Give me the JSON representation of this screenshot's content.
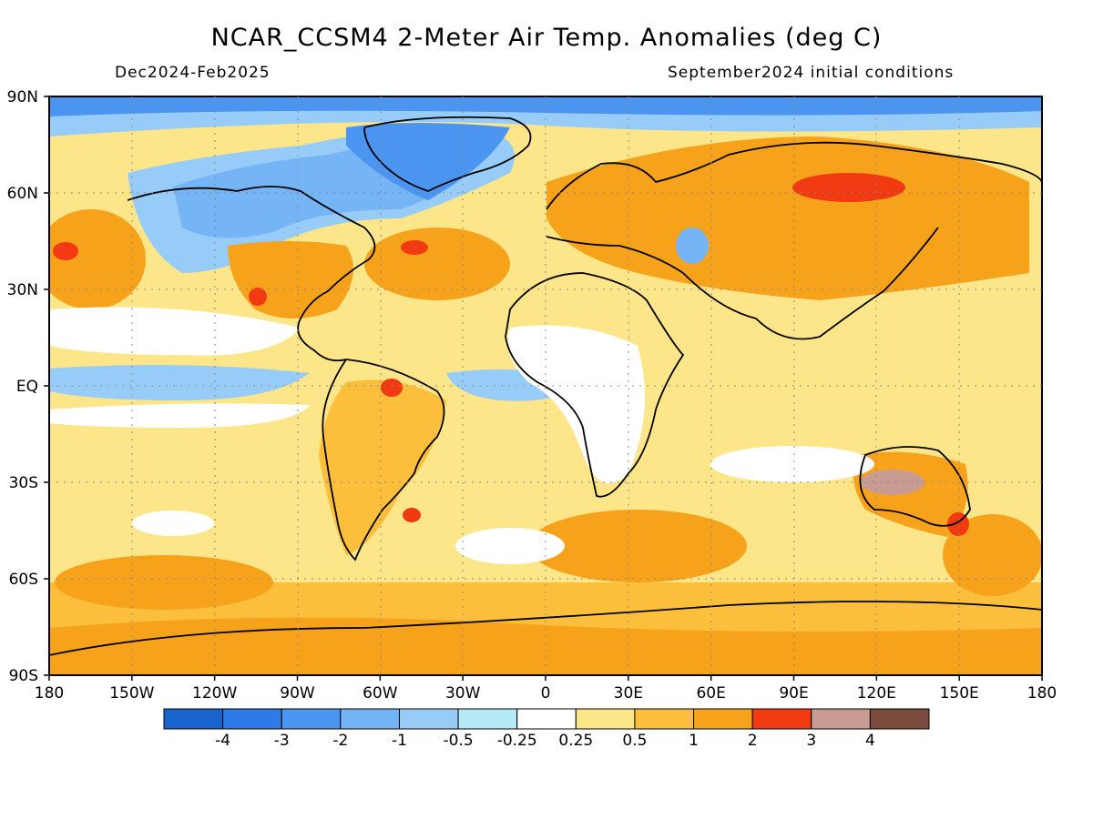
{
  "title": "NCAR_CCSM4 2-Meter Air Temp. Anomalies (deg C)",
  "subtitle_left": "Dec2024-Feb2025",
  "subtitle_right": "September2024 initial conditions",
  "lat_labels": [
    "90N",
    "60N",
    "30N",
    "EQ",
    "30S",
    "60S",
    "90S"
  ],
  "lon_labels": [
    "180",
    "150W",
    "120W",
    "90W",
    "60W",
    "30W",
    "0",
    "30E",
    "60E",
    "90E",
    "120E",
    "150E",
    "180"
  ],
  "colorbar": {
    "colors": [
      "#1a64d0",
      "#2e7ae8",
      "#4b95f0",
      "#75b4f5",
      "#98ccf8",
      "#b7eaf7",
      "#ffffff",
      "#fde68a",
      "#fbbf3c",
      "#f7a21b",
      "#f23a12",
      "#c89c92",
      "#7b4c3e"
    ],
    "labels": [
      "-4",
      "-3",
      "-2",
      "-1",
      "-0.5",
      "-0.25",
      "0.25",
      "0.5",
      "1",
      "2",
      "3",
      "4"
    ]
  }
}
